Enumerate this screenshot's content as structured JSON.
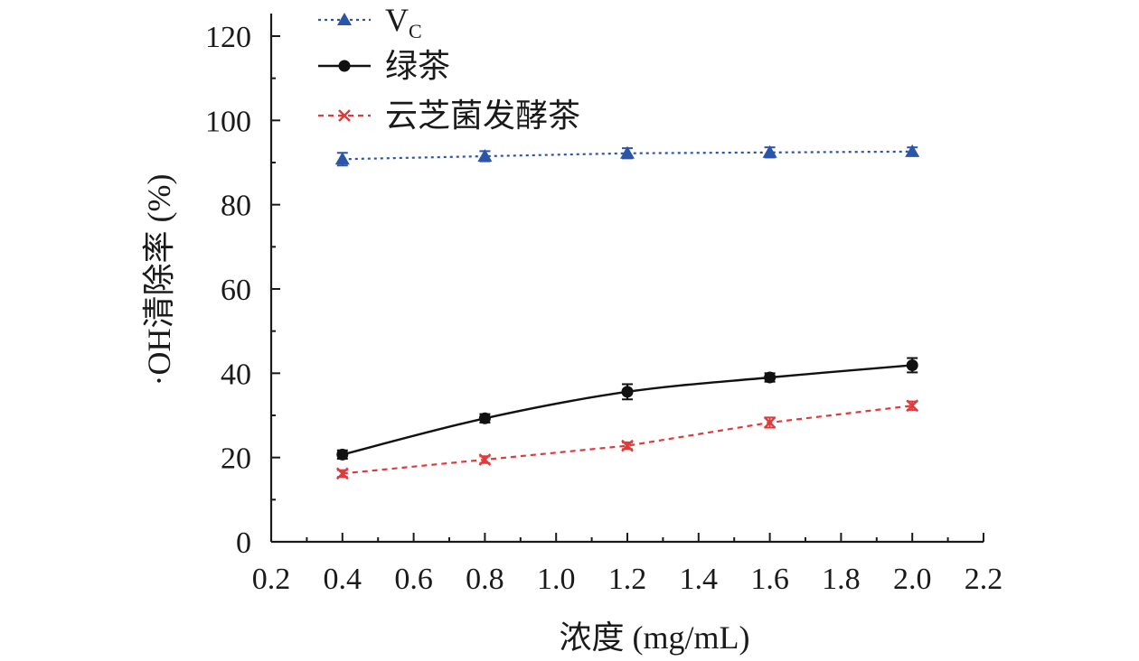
{
  "chart_data": {
    "type": "line",
    "xlabel": "浓度 (mg/mL)",
    "ylabel": "·OH清除率 (%)",
    "xlim": [
      0.2,
      2.2
    ],
    "ylim": [
      0,
      120
    ],
    "x_ticks": [
      0.2,
      0.4,
      0.6,
      0.8,
      1.0,
      1.2,
      1.4,
      1.6,
      1.8,
      2.0,
      2.2
    ],
    "x_tick_labels": [
      "0.2",
      "0.4",
      "0.6",
      "0.8",
      "1.0",
      "1.2",
      "1.4",
      "1.6",
      "1.8",
      "2.0",
      "2.2"
    ],
    "y_ticks": [
      0,
      20,
      40,
      60,
      80,
      100,
      120
    ],
    "y_tick_labels": [
      "0",
      "20",
      "40",
      "60",
      "80",
      "100",
      "120"
    ],
    "grid": false,
    "legend_position": "top-left",
    "x": [
      0.4,
      0.8,
      1.2,
      1.6,
      2.0
    ],
    "series": [
      {
        "name": "V",
        "name_subscript": "C",
        "values": [
          90.8,
          91.5,
          92.2,
          92.4,
          92.6
        ],
        "errors": [
          1.5,
          1.2,
          1.2,
          1.2,
          1.0
        ],
        "color": "#2b55a8",
        "line": "dotted",
        "marker": "triangle"
      },
      {
        "name": "绿茶",
        "values": [
          20.7,
          29.3,
          35.6,
          39.0,
          41.9
        ],
        "errors": [
          1.0,
          1.0,
          1.8,
          1.0,
          1.7
        ],
        "color": "#111111",
        "line": "solid",
        "marker": "circle"
      },
      {
        "name": "云芝菌发酵茶",
        "values": [
          16.2,
          19.5,
          22.8,
          28.3,
          32.3
        ],
        "errors": [
          0.8,
          0.8,
          0.8,
          1.2,
          1.0
        ],
        "color": "#e03a3a",
        "line": "dashed",
        "marker": "x"
      }
    ]
  }
}
